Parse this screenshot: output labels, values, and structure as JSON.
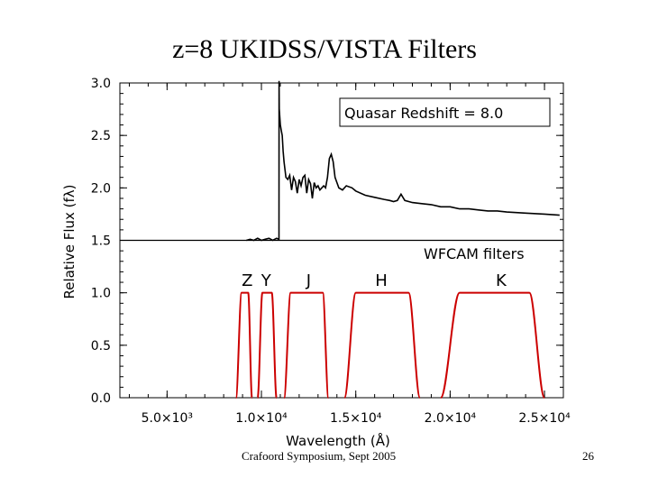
{
  "slide": {
    "title": "z=8 UKIDSS/VISTA Filters",
    "footer_left": "Crafoord Symposium, Sept 2005",
    "page_number": "26"
  },
  "chart_data": {
    "type": "line",
    "title": "",
    "xlabel": "Wavelength (Å)",
    "ylabel": "Relative Flux (fλ)",
    "xlim": [
      2500,
      26000
    ],
    "ylim": [
      0,
      3.0
    ],
    "x_ticks": [
      5000,
      10000,
      15000,
      20000,
      25000
    ],
    "x_tick_labels": [
      "5.0×10³",
      "1.0×10⁴",
      "1.5×10⁴",
      "2.0×10⁴",
      "2.5×10⁴"
    ],
    "y_ticks": [
      0,
      0.5,
      1.0,
      1.5,
      2.0,
      2.5,
      3.0
    ],
    "y_tick_labels": [
      "0.0",
      "0.5",
      "1.0",
      "1.5",
      "2.0",
      "2.5",
      "3.0"
    ],
    "divider_y": 1.5,
    "grid": false,
    "legend": "none",
    "annotations": {
      "redshift_box": "Quasar Redshift = 8.0",
      "filters_title": "WFCAM filters"
    },
    "series": [
      {
        "color": "#000000",
        "x": [
          9200,
          9400,
          9600,
          9800,
          10000,
          10200,
          10400,
          10600,
          10800,
          10930,
          10935,
          10945,
          11000,
          11050,
          11100,
          11150,
          11200,
          11300,
          11400,
          11500,
          11600,
          11700,
          11800,
          11900,
          12000,
          12100,
          12200,
          12300,
          12400,
          12500,
          12600,
          12700,
          12800,
          12900,
          13000,
          13100,
          13200,
          13300,
          13400,
          13500,
          13600,
          13700,
          13800,
          13900,
          14000,
          14100,
          14200,
          14300,
          14400,
          14500,
          14800,
          15000,
          15500,
          16000,
          16500,
          16800,
          17000,
          17200,
          17400,
          17600,
          18000,
          18500,
          19000,
          19500,
          20000,
          20500,
          21000,
          21500,
          22000,
          22500,
          23000,
          24000,
          25000,
          25800
        ],
        "y": [
          1.5,
          1.51,
          1.5,
          1.52,
          1.5,
          1.51,
          1.52,
          1.5,
          1.52,
          1.51,
          3.02,
          2.75,
          2.6,
          2.55,
          2.5,
          2.35,
          2.25,
          2.1,
          2.08,
          2.12,
          1.98,
          2.1,
          2.06,
          1.95,
          2.08,
          2.02,
          2.1,
          2.12,
          1.95,
          2.08,
          2.04,
          1.9,
          2.05,
          2.0,
          2.02,
          1.98,
          2.0,
          2.02,
          2.0,
          2.1,
          2.28,
          2.32,
          2.25,
          2.1,
          2.05,
          2.0,
          1.99,
          1.98,
          2.0,
          2.02,
          2.0,
          1.97,
          1.93,
          1.91,
          1.89,
          1.88,
          1.87,
          1.88,
          1.94,
          1.88,
          1.86,
          1.85,
          1.84,
          1.82,
          1.82,
          1.8,
          1.8,
          1.79,
          1.78,
          1.78,
          1.77,
          1.76,
          1.75,
          1.74
        ]
      },
      {
        "color": "#cc0000",
        "filters": [
          {
            "name": "Z",
            "label_x": 9250,
            "low": [
              8650,
              8950
            ],
            "high": [
              9300,
              9500
            ]
          },
          {
            "name": "Y",
            "label_x": 10250,
            "low": [
              9800,
              10050
            ],
            "high": [
              10550,
              10800
            ]
          },
          {
            "name": "J",
            "label_x": 12500,
            "low": [
              11200,
              11550
            ],
            "high": [
              13250,
              13550
            ]
          },
          {
            "name": "H",
            "label_x": 16350,
            "low": [
              14400,
              15000
            ],
            "high": [
              17800,
              18400
            ]
          },
          {
            "name": "K",
            "label_x": 22700,
            "low": [
              19500,
              20500
            ],
            "high": [
              24200,
              25000
            ]
          }
        ]
      }
    ]
  }
}
